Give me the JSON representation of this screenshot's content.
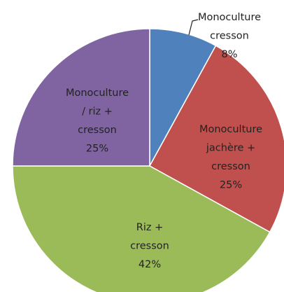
{
  "chart_data": {
    "type": "pie",
    "categories": [
      [
        "Monoculture",
        "cresson"
      ],
      [
        "Monoculture",
        "jachère +",
        "cresson"
      ],
      [
        "Riz +",
        "cresson"
      ],
      [
        "Monoculture",
        "/ riz +",
        "cresson"
      ]
    ],
    "values": [
      8,
      25,
      42,
      25
    ],
    "value_labels": [
      "8%",
      "25%",
      "42%",
      "25%"
    ],
    "colors": [
      "#4f81bd",
      "#c0504d",
      "#9bbb59",
      "#8064a2"
    ]
  }
}
